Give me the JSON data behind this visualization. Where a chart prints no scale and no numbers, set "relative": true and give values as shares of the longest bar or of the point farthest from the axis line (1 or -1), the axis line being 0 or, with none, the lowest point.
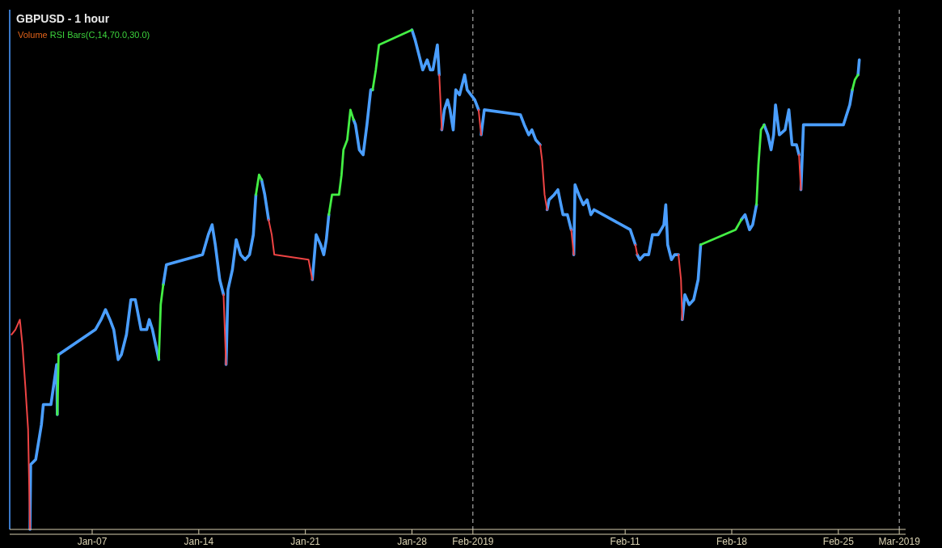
{
  "chart_data": {
    "type": "line",
    "title": "GBPUSD - 1 hour",
    "annotations": [
      "Volume",
      "RSI Bars(C,14,70.0,30.0)"
    ],
    "relative": true,
    "xlim": [
      "2019-01-01T14:00",
      "2019-03-01T10:00"
    ],
    "xticks": [
      {
        "value": "2019-01-07",
        "label": "Jan-07"
      },
      {
        "value": "2019-01-14",
        "label": "Jan-14"
      },
      {
        "value": "2019-01-21",
        "label": "Jan-21"
      },
      {
        "value": "2019-01-28",
        "label": "Jan-28"
      },
      {
        "value": "2019-02-01",
        "label": "Feb-2019"
      },
      {
        "value": "2019-02-11",
        "label": "Feb-11"
      },
      {
        "value": "2019-02-18",
        "label": "Feb-18"
      },
      {
        "value": "2019-02-25",
        "label": "Feb-25"
      },
      {
        "value": "2019-03-01",
        "label": "Mar-2019"
      }
    ],
    "ref_lines": [
      {
        "axis": "x",
        "value": "2019-02-01",
        "color": "#c8c8c8",
        "line_style": "dashed"
      },
      {
        "axis": "x",
        "value": "2019-03-01",
        "color": "#c8c8c8",
        "line_style": "dashed"
      }
    ],
    "series": [
      {
        "color": "#4a9eff",
        "x": [
          "2019-01-02T22:00",
          "2019-01-02T23:00",
          "2019-01-03T07:00",
          "2019-01-03T16:00",
          "2019-01-03T19:00",
          "2019-01-04T07:00",
          "2019-01-04T16:00",
          "2019-01-04T17:00",
          null,
          "2019-01-04T19:00",
          "2019-01-07T05:00",
          "2019-01-07T14:00",
          "2019-01-07T21:00",
          "2019-01-08T04:00",
          "2019-01-08T10:00",
          "2019-01-08T17:00",
          "2019-01-08T22:00",
          "2019-01-09T06:00",
          "2019-01-09T13:00",
          "2019-01-09T20:00",
          "2019-01-10T05:00",
          "2019-01-10T14:00",
          "2019-01-10T18:00",
          "2019-01-10T23:00",
          "2019-01-11T09:00",
          null,
          "2019-01-11T16:00",
          "2019-01-11T21:00",
          "2019-01-14T06:00",
          "2019-01-14T15:00",
          "2019-01-14T21:00",
          "2019-01-15T02:00",
          "2019-01-15T09:00",
          "2019-01-15T15:00",
          null,
          "2019-01-15T19:00",
          "2019-01-15T22:00",
          "2019-01-16T05:00",
          "2019-01-16T11:00",
          "2019-01-16T18:00",
          "2019-01-17T01:00",
          "2019-01-17T08:00",
          "2019-01-17T14:00",
          "2019-01-17T18:00",
          null,
          "2019-01-18T03:00",
          "2019-01-18T08:00",
          "2019-01-18T14:00",
          null,
          "2019-01-21T11:00",
          "2019-01-21T17:00",
          "2019-01-22T00:00",
          "2019-01-22T05:00",
          "2019-01-22T09:00",
          "2019-01-22T13:00",
          null,
          "2019-01-24T04:00",
          "2019-01-24T07:00",
          "2019-01-24T13:00",
          "2019-01-24T19:00",
          "2019-01-25T01:00",
          "2019-01-25T07:00",
          "2019-01-25T10:00",
          null,
          "2019-01-28T00:00",
          "2019-01-28T05:00",
          "2019-01-28T11:00",
          "2019-01-28T17:00",
          "2019-01-29T00:00",
          "2019-01-29T05:00",
          "2019-01-29T09:00",
          "2019-01-29T16:00",
          "2019-01-29T19:00",
          null,
          "2019-01-29T23:00",
          "2019-01-30T03:00",
          "2019-01-30T08:00",
          "2019-01-30T12:00",
          "2019-01-30T17:00",
          "2019-01-30T21:00",
          "2019-01-31T03:00",
          "2019-01-31T11:00",
          "2019-01-31T15:00",
          "2019-01-31T21:00",
          "2019-02-01T03:00",
          "2019-02-01T09:00",
          null,
          "2019-02-01T13:00",
          "2019-02-01T18:00",
          "2019-02-04T03:00",
          "2019-02-04T09:00",
          "2019-02-04T16:00",
          "2019-02-04T21:00",
          "2019-02-05T03:00",
          "2019-02-05T10:00",
          null,
          "2019-02-05T21:00",
          "2019-02-06T00:00",
          "2019-02-06T08:00",
          "2019-02-06T14:00",
          "2019-02-06T22:00",
          "2019-02-07T05:00",
          "2019-02-07T11:00",
          null,
          "2019-02-07T15:00",
          "2019-02-07T17:00",
          "2019-02-07T23:00",
          "2019-02-08T06:00",
          "2019-02-08T12:00",
          "2019-02-08T18:00",
          "2019-02-08T23:00",
          "2019-02-11T08:00",
          "2019-02-11T16:00",
          null,
          "2019-02-11T19:00",
          "2019-02-11T23:00",
          "2019-02-12T06:00",
          "2019-02-12T13:00",
          "2019-02-12T19:00",
          "2019-02-13T04:00",
          "2019-02-13T13:00",
          "2019-02-13T16:00",
          "2019-02-13T19:00",
          "2019-02-14T01:00",
          "2019-02-14T06:00",
          "2019-02-14T12:00",
          null,
          "2019-02-14T18:00",
          "2019-02-14T22:00",
          "2019-02-15T05:00",
          "2019-02-15T12:00",
          "2019-02-15T19:00",
          "2019-02-15T23:00",
          null,
          "2019-02-18T15:00",
          "2019-02-18T21:00",
          "2019-02-19T04:00",
          "2019-02-19T09:00",
          "2019-02-19T15:00",
          null,
          "2019-02-20T03:00",
          "2019-02-20T09:00",
          "2019-02-20T14:00",
          "2019-02-20T18:00",
          "2019-02-20T21:00",
          "2019-02-21T03:00",
          "2019-02-21T12:00",
          "2019-02-21T18:00",
          "2019-02-21T23:00",
          "2019-02-22T06:00",
          "2019-02-22T10:00",
          null,
          "2019-02-22T13:00",
          "2019-02-22T17:00",
          "2019-02-22T23:00",
          "2019-02-25T08:00",
          "2019-02-25T13:00",
          "2019-02-25T18:00",
          "2019-02-25T22:00",
          null,
          "2019-02-26T07:00",
          "2019-02-26T09:00"
        ],
        "values": [
          0,
          0.13,
          0.14,
          0.21,
          0.25,
          0.25,
          0.33,
          0.23,
          null,
          0.35,
          0.4,
          0.42,
          0.44,
          0.42,
          0.4,
          0.34,
          0.35,
          0.39,
          0.46,
          0.46,
          0.4,
          0.4,
          0.42,
          0.4,
          0.34,
          null,
          0.49,
          0.53,
          0.55,
          0.59,
          0.61,
          0.57,
          0.5,
          0.47,
          null,
          0.33,
          0.48,
          0.52,
          0.58,
          0.55,
          0.54,
          0.55,
          0.59,
          0.67,
          null,
          0.7,
          0.67,
          0.62,
          null,
          0.5,
          0.59,
          0.57,
          0.55,
          0.58,
          0.63,
          null,
          0.82,
          0.81,
          0.76,
          0.75,
          0.81,
          0.88,
          0.88,
          null,
          1,
          0.98,
          0.95,
          0.92,
          0.94,
          0.92,
          0.92,
          0.97,
          0.91,
          null,
          0.8,
          0.84,
          0.86,
          0.84,
          0.8,
          0.88,
          0.87,
          0.91,
          0.88,
          0.87,
          0.86,
          0.84,
          null,
          0.79,
          0.84,
          0.83,
          0.81,
          0.79,
          0.8,
          0.78,
          0.77,
          null,
          0.64,
          0.66,
          0.67,
          0.68,
          0.63,
          0.63,
          0.6,
          null,
          0.55,
          0.69,
          0.67,
          0.65,
          0.66,
          0.63,
          0.64,
          0.6,
          0.57,
          null,
          0.55,
          0.54,
          0.55,
          0.55,
          0.59,
          0.59,
          0.61,
          0.65,
          0.57,
          0.54,
          0.55,
          0.55,
          null,
          0.42,
          0.47,
          0.45,
          0.46,
          0.5,
          0.57,
          null,
          0.62,
          0.63,
          0.6,
          0.61,
          0.65,
          null,
          0.81,
          0.79,
          0.76,
          0.79,
          0.85,
          0.79,
          0.8,
          0.84,
          0.77,
          0.77,
          0.75,
          null,
          0.68,
          0.81,
          0.81,
          0.81,
          0.83,
          0.85,
          0.88,
          null,
          0.91,
          0.94
        ]
      },
      {
        "color": "#44ee44",
        "x": [
          "2019-01-04T17:00",
          "2019-01-04T19:00",
          null,
          "2019-01-11T09:00",
          "2019-01-11T12:00",
          "2019-01-11T16:00",
          null,
          "2019-01-17T18:00",
          "2019-01-17T23:00",
          "2019-01-18T03:00",
          null,
          "2019-01-22T13:00",
          "2019-01-22T18:00",
          "2019-01-22T22:00",
          "2019-01-23T05:00",
          "2019-01-23T09:00",
          "2019-01-23T12:00",
          "2019-01-23T18:00",
          "2019-01-23T23:00",
          "2019-01-24T04:00",
          null,
          "2019-01-25T10:00",
          "2019-01-25T15:00",
          "2019-01-25T20:00",
          "2019-01-28T00:00",
          null,
          "2019-02-15T23:00",
          "2019-02-18T06:00",
          "2019-02-18T15:00",
          null,
          "2019-02-19T15:00",
          "2019-02-19T18:00",
          "2019-02-19T22:00",
          "2019-02-20T03:00",
          null,
          "2019-02-25T22:00",
          "2019-02-26T02:00",
          "2019-02-26T07:00"
        ],
        "values": [
          0.23,
          0.35,
          null,
          0.34,
          0.45,
          0.49,
          null,
          0.67,
          0.71,
          0.7,
          null,
          0.63,
          0.67,
          0.67,
          0.67,
          0.71,
          0.76,
          0.78,
          0.84,
          0.82,
          null,
          0.88,
          0.92,
          0.97,
          1,
          null,
          0.57,
          0.6,
          0.62,
          null,
          0.65,
          0.73,
          0.8,
          0.81,
          null,
          0.88,
          0.9,
          0.91
        ]
      },
      {
        "color": "#ee4444",
        "x": [
          "2019-01-01T17:00",
          "2019-01-01T23:00",
          "2019-01-02T06:00",
          "2019-01-02T10:00",
          "2019-01-02T15:00",
          "2019-01-02T19:00",
          "2019-01-02T22:00",
          null,
          "2019-01-15T15:00",
          "2019-01-15T19:00",
          null,
          "2019-01-18T14:00",
          "2019-01-18T19:00",
          "2019-01-18T23:00",
          "2019-01-21T05:00",
          "2019-01-21T11:00",
          null,
          "2019-01-29T19:00",
          "2019-01-29T23:00",
          null,
          "2019-02-01T09:00",
          "2019-02-01T13:00",
          null,
          "2019-02-05T10:00",
          "2019-02-05T13:00",
          "2019-02-05T17:00",
          "2019-02-05T21:00",
          null,
          "2019-02-07T11:00",
          "2019-02-07T15:00",
          null,
          "2019-02-11T16:00",
          "2019-02-11T19:00",
          null,
          "2019-02-14T12:00",
          "2019-02-14T16:00",
          "2019-02-14T18:00",
          null,
          "2019-02-22T10:00",
          "2019-02-22T13:00"
        ],
        "values": [
          0.39,
          0.4,
          0.42,
          0.37,
          0.28,
          0.2,
          0,
          null,
          0.47,
          0.33,
          null,
          0.62,
          0.59,
          0.55,
          0.54,
          0.5,
          null,
          0.91,
          0.8,
          null,
          0.84,
          0.79,
          null,
          0.77,
          0.74,
          0.67,
          0.64,
          null,
          0.6,
          0.55,
          null,
          0.57,
          0.55,
          null,
          0.55,
          0.5,
          0.42,
          null,
          0.75,
          0.68
        ]
      }
    ]
  }
}
